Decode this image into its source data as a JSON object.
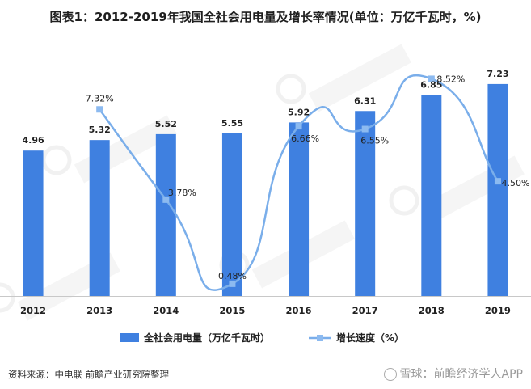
{
  "chart_title": "图表1：2012-2019年我国全社会用电量及增长率情况(单位：万亿千瓦时，%)",
  "source": "资料来源：中电联 前瞻产业研究院整理",
  "watermark": "雪球：前瞻经济学人APP",
  "colors": {
    "bar": "#3f80e0",
    "line": "#7aaeea",
    "marker": "#8cbaf0"
  },
  "chart_data": {
    "type": "bar",
    "categories": [
      "2012",
      "2013",
      "2014",
      "2015",
      "2016",
      "2017",
      "2018",
      "2019"
    ],
    "series": [
      {
        "name": "全社会用电量（万亿千瓦时）",
        "type": "bar",
        "axis": "left",
        "values": [
          4.96,
          5.32,
          5.52,
          5.55,
          5.92,
          6.31,
          6.85,
          7.23
        ],
        "labels": [
          "4.96",
          "5.32",
          "5.52",
          "5.55",
          "5.92",
          "6.31",
          "6.85",
          "7.23"
        ]
      },
      {
        "name": "增长速度（%）",
        "type": "line",
        "axis": "right",
        "smooth": true,
        "values": [
          null,
          7.32,
          3.78,
          0.48,
          6.66,
          6.55,
          8.52,
          4.5
        ],
        "labels": [
          "",
          "7.32%",
          "3.78%",
          "0.48%",
          "6.66%",
          "6.55%",
          "8.52%",
          "4.50%"
        ]
      }
    ],
    "ylim_left": [
      0,
      8
    ],
    "ylim_right": [
      0,
      9.2
    ],
    "legend_position": "bottom",
    "grid": false
  }
}
